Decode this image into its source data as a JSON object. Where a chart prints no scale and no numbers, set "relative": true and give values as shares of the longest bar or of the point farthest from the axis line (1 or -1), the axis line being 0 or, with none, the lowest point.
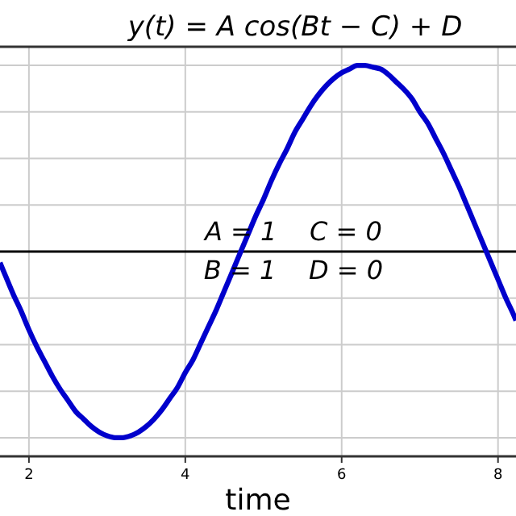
{
  "chart_data": {
    "type": "line",
    "title": "y(t) = A cos(Bt − C) + D",
    "xlabel": "time",
    "relative": true,
    "grid": true,
    "xlim": [
      1.63,
      8.23
    ],
    "xticks": [
      2,
      4,
      6,
      8
    ],
    "annotations": [
      "A = 1    C = 0",
      "B = 1    D = 0"
    ],
    "ref_lines": [
      {
        "axis": "y",
        "value": 0,
        "color": "#000000"
      }
    ],
    "x": [
      1.63,
      1.7,
      1.8,
      1.9,
      2.0,
      2.1,
      2.2,
      2.3,
      2.4,
      2.5,
      2.6,
      2.7,
      2.8,
      2.9,
      3.0,
      3.1,
      3.2,
      3.3,
      3.4,
      3.5,
      3.6,
      3.7,
      3.8,
      3.9,
      4.0,
      4.1,
      4.2,
      4.3,
      4.4,
      4.5,
      4.6,
      4.7,
      4.8,
      4.9,
      5.0,
      5.1,
      5.2,
      5.3,
      5.4,
      5.5,
      5.6,
      5.7,
      5.8,
      5.9,
      6.0,
      6.1,
      6.2,
      6.3,
      6.4,
      6.5,
      6.6,
      6.7,
      6.8,
      6.9,
      7.0,
      7.1,
      7.2,
      7.3,
      7.4,
      7.5,
      7.6,
      7.7,
      7.8,
      7.9,
      8.0,
      8.1,
      8.2,
      8.23
    ],
    "series": [
      {
        "color": "#0000cc",
        "values": [
          -0.06,
          -0.13,
          -0.23,
          -0.32,
          -0.42,
          -0.51,
          -0.59,
          -0.67,
          -0.74,
          -0.8,
          -0.86,
          -0.9,
          -0.94,
          -0.97,
          -0.99,
          -1.0,
          -1.0,
          -0.99,
          -0.97,
          -0.94,
          -0.9,
          -0.85,
          -0.79,
          -0.73,
          -0.65,
          -0.58,
          -0.49,
          -0.4,
          -0.31,
          -0.21,
          -0.11,
          -0.01,
          0.09,
          0.19,
          0.28,
          0.38,
          0.47,
          0.55,
          0.64,
          0.71,
          0.78,
          0.84,
          0.89,
          0.93,
          0.96,
          0.98,
          1.0,
          1.0,
          0.99,
          0.98,
          0.95,
          0.91,
          0.87,
          0.82,
          0.75,
          0.69,
          0.61,
          0.53,
          0.44,
          0.35,
          0.25,
          0.15,
          0.05,
          -0.05,
          -0.15,
          -0.25,
          -0.34,
          -0.37
        ]
      }
    ]
  }
}
